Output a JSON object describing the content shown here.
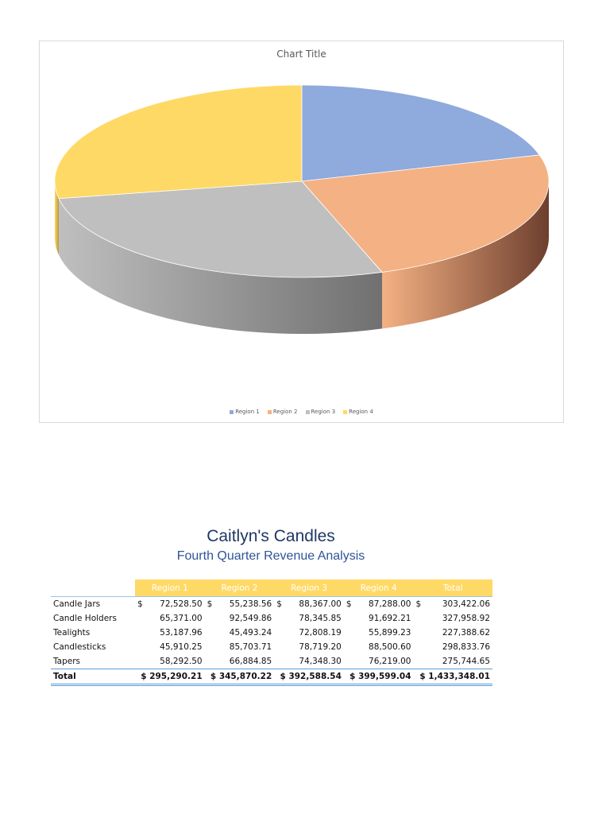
{
  "chart": {
    "title": "Chart Title",
    "colors": {
      "Region 1": "#8faadc",
      "Region 2": "#f4b183",
      "Region 3": "#bfbfbf",
      "Region 4": "#ffd966"
    },
    "side_colors": {
      "Region 1": "#5f7fb8",
      "Region 2": "#6e3f2e",
      "Region 3": "#707070",
      "Region 4": "#b8973e"
    }
  },
  "chart_data": {
    "type": "pie",
    "title": "Chart Title",
    "categories": [
      "Region 1",
      "Region 2",
      "Region 3",
      "Region 4"
    ],
    "values": [
      295290.21,
      345870.22,
      392588.54,
      399599.04
    ],
    "legend": "bottom",
    "style": "3d"
  },
  "document": {
    "title": "Caitlyn's Candles",
    "subtitle": "Fourth Quarter Revenue Analysis"
  },
  "table": {
    "headers": [
      "Region 1",
      "Region 2",
      "Region 3",
      "Region 4",
      "Total"
    ],
    "currency": "$",
    "rows": [
      {
        "label": "Candle Jars",
        "values": [
          "72,528.50",
          "55,238.56",
          "88,367.00",
          "87,288.00",
          "303,422.06"
        ]
      },
      {
        "label": "Candle Holders",
        "values": [
          "65,371.00",
          "92,549.86",
          "78,345.85",
          "91,692.21",
          "327,958.92"
        ]
      },
      {
        "label": "Tealights",
        "values": [
          "53,187.96",
          "45,493.24",
          "72,808.19",
          "55,899.23",
          "227,388.62"
        ]
      },
      {
        "label": "Candlesticks",
        "values": [
          "45,910.25",
          "85,703.71",
          "78,719.20",
          "88,500.60",
          "298,833.76"
        ]
      },
      {
        "label": "Tapers",
        "values": [
          "58,292.50",
          "66,884.85",
          "74,348.30",
          "76,219.00",
          "275,744.65"
        ]
      }
    ],
    "total": {
      "label": "Total",
      "values": [
        "$ 295,290.21",
        "$ 345,870.22",
        "$ 392,588.54",
        "$ 399,599.04",
        "$ 1,433,348.01"
      ]
    }
  }
}
